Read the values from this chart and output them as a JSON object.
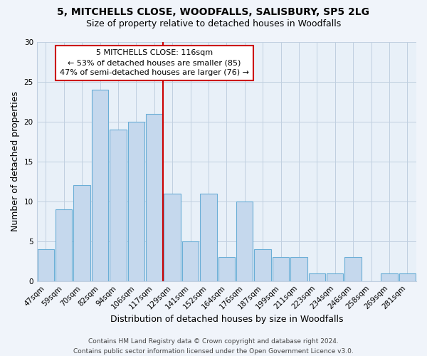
{
  "title": "5, MITCHELLS CLOSE, WOODFALLS, SALISBURY, SP5 2LG",
  "subtitle": "Size of property relative to detached houses in Woodfalls",
  "xlabel": "Distribution of detached houses by size in Woodfalls",
  "ylabel": "Number of detached properties",
  "footer_line1": "Contains HM Land Registry data © Crown copyright and database right 2024.",
  "footer_line2": "Contains public sector information licensed under the Open Government Licence v3.0.",
  "bar_labels": [
    "47sqm",
    "59sqm",
    "70sqm",
    "82sqm",
    "94sqm",
    "106sqm",
    "117sqm",
    "129sqm",
    "141sqm",
    "152sqm",
    "164sqm",
    "176sqm",
    "187sqm",
    "199sqm",
    "211sqm",
    "223sqm",
    "234sqm",
    "246sqm",
    "258sqm",
    "269sqm",
    "281sqm"
  ],
  "bar_values": [
    4,
    9,
    12,
    24,
    19,
    20,
    21,
    11,
    5,
    11,
    3,
    10,
    4,
    3,
    3,
    1,
    1,
    3,
    0,
    1,
    1
  ],
  "bar_color": "#c5d8ed",
  "bar_edge_color": "#6aaed6",
  "vline_index": 6,
  "vline_color": "#cc0000",
  "annotation_line1": "5 MITCHELLS CLOSE: 116sqm",
  "annotation_line2": "← 53% of detached houses are smaller (85)",
  "annotation_line3": "47% of semi-detached houses are larger (76) →",
  "annotation_box_facecolor": "#ffffff",
  "annotation_box_edgecolor": "#cc0000",
  "ylim": [
    0,
    30
  ],
  "yticks": [
    0,
    5,
    10,
    15,
    20,
    25,
    30
  ],
  "bg_color": "#f0f4fa",
  "plot_bg_color": "#e8f0f8",
  "grid_color": "#c0cfe0",
  "title_fontsize": 10,
  "subtitle_fontsize": 9,
  "axis_label_fontsize": 9,
  "tick_fontsize": 7.5,
  "annotation_fontsize": 8,
  "footer_fontsize": 6.5
}
